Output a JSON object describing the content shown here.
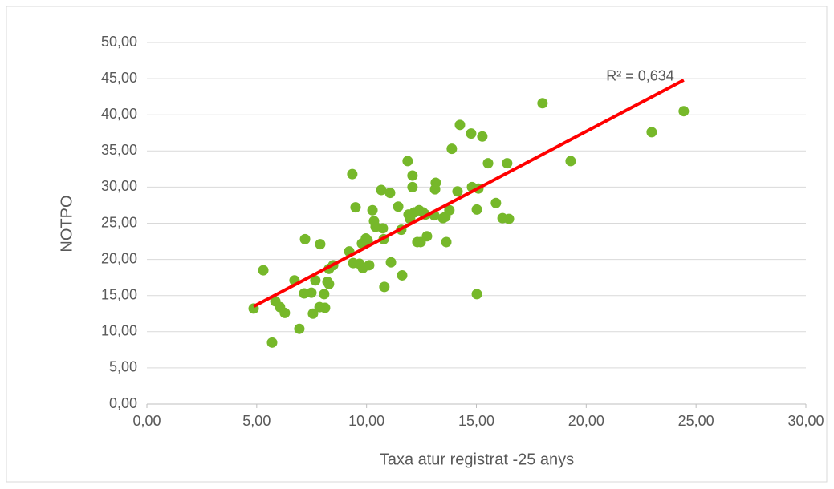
{
  "chart_data": {
    "type": "scatter",
    "x_label": "Taxa atur registrat -25 anys",
    "y_label": "NOTPO",
    "series": [
      {
        "name": "NOTPO",
        "color": "#76b82a",
        "x": [
          4.86,
          5.3,
          5.7,
          5.85,
          6.06,
          6.28,
          6.72,
          6.94,
          7.2,
          7.16,
          7.49,
          7.56,
          7.67,
          7.86,
          7.89,
          8.07,
          8.11,
          8.22,
          8.29,
          8.29,
          8.48,
          9.21,
          9.35,
          9.39,
          9.5,
          9.68,
          9.79,
          9.83,
          9.97,
          10.05,
          10.12,
          10.27,
          10.34,
          10.41,
          10.67,
          10.74,
          10.78,
          10.81,
          11.07,
          11.11,
          11.44,
          11.58,
          11.62,
          11.87,
          11.91,
          11.98,
          12.09,
          12.09,
          12.17,
          12.31,
          12.39,
          12.46,
          12.57,
          12.68,
          12.75,
          13.08,
          13.12,
          13.15,
          13.48,
          13.59,
          13.63,
          13.77,
          13.88,
          14.14,
          14.25,
          14.76,
          14.8,
          15.02,
          15.02,
          15.09,
          15.27,
          15.53,
          15.89,
          16.19,
          16.4,
          16.48,
          18.01,
          19.29,
          22.98,
          24.44
        ],
        "values": [
          13.2,
          18.5,
          8.5,
          14.2,
          13.4,
          12.6,
          17.1,
          10.4,
          22.8,
          15.3,
          15.4,
          12.5,
          17.1,
          13.4,
          22.1,
          15.2,
          13.3,
          16.9,
          18.7,
          16.6,
          19.2,
          21.1,
          31.8,
          19.5,
          27.2,
          19.4,
          22.2,
          18.8,
          22.9,
          22.6,
          19.2,
          26.8,
          25.3,
          24.5,
          29.6,
          24.3,
          22.8,
          16.2,
          29.2,
          19.6,
          27.3,
          24.1,
          17.8,
          33.6,
          26.2,
          25.6,
          31.6,
          30.0,
          26.5,
          22.4,
          26.8,
          22.4,
          26.5,
          26.2,
          23.2,
          26.1,
          29.7,
          30.6,
          25.7,
          25.9,
          22.4,
          26.8,
          35.3,
          29.4,
          38.6,
          37.4,
          30.0,
          26.9,
          15.2,
          29.8,
          37.0,
          33.3,
          27.8,
          25.7,
          33.3,
          25.6,
          41.6,
          33.6,
          37.6,
          40.5
        ]
      }
    ],
    "trendline": {
      "x": [
        4.86,
        24.44
      ],
      "values": [
        13.5,
        44.8
      ],
      "color": "#ff0000",
      "label": "R² = 0,634"
    },
    "xlim": [
      0,
      30
    ],
    "xticks": [
      {
        "value": 0,
        "label": "0,00"
      },
      {
        "value": 5,
        "label": "5,00"
      },
      {
        "value": 10,
        "label": "10,00"
      },
      {
        "value": 15,
        "label": "15,00"
      },
      {
        "value": 20,
        "label": "20,00"
      },
      {
        "value": 25,
        "label": "25,00"
      },
      {
        "value": 30,
        "label": "30,00"
      }
    ],
    "ylim": [
      0,
      50
    ],
    "yticks": [
      {
        "value": 0,
        "label": "0,00"
      },
      {
        "value": 5,
        "label": "5,00"
      },
      {
        "value": 10,
        "label": "10,00"
      },
      {
        "value": 15,
        "label": "15,00"
      },
      {
        "value": 20,
        "label": "20,00"
      },
      {
        "value": 25,
        "label": "25,00"
      },
      {
        "value": 30,
        "label": "30,00"
      },
      {
        "value": 35,
        "label": "35,00"
      },
      {
        "value": 40,
        "label": "40,00"
      },
      {
        "value": 45,
        "label": "45,00"
      },
      {
        "value": 50,
        "label": "50,00"
      }
    ],
    "grid": true
  }
}
